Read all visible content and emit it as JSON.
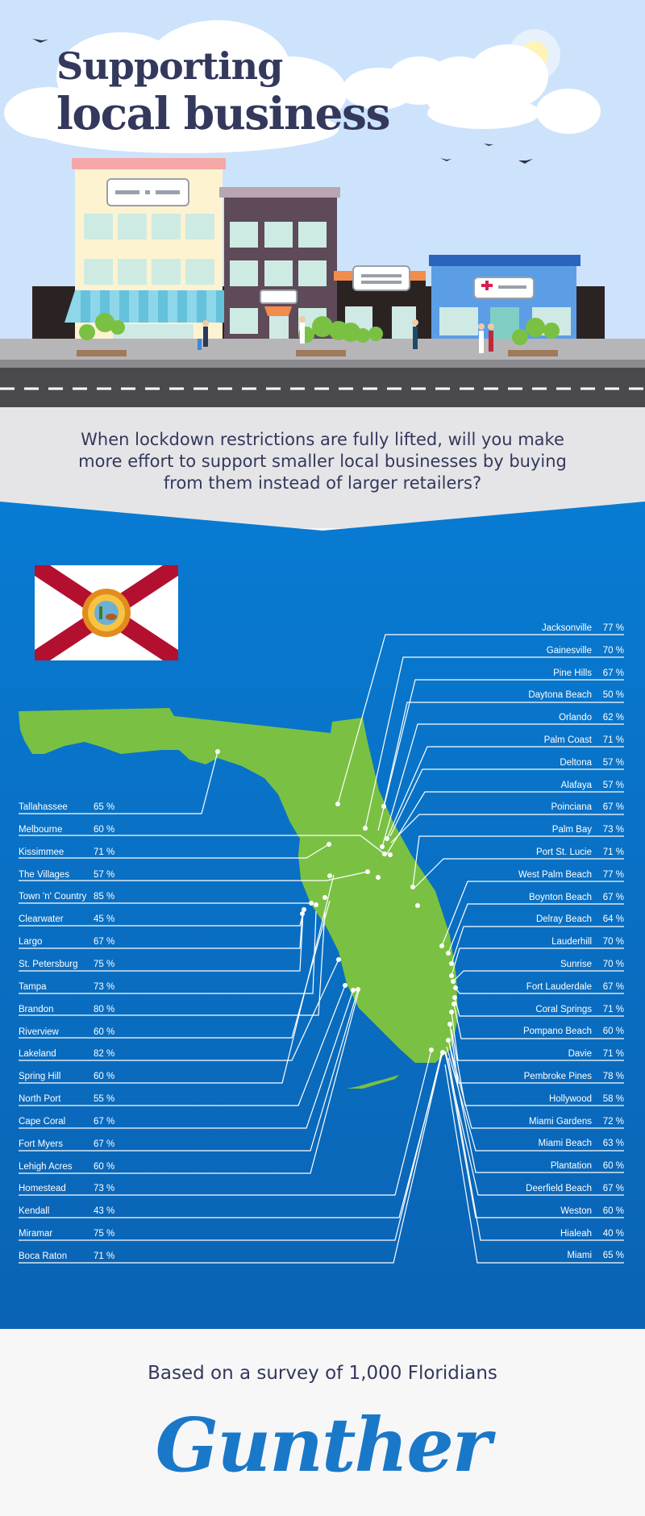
{
  "header": {
    "title_line1": "Supporting",
    "title_line2": "local business"
  },
  "question": "When lockdown restrictions are fully lifted, will you make more effort to support smaller local businesses by buying from them instead of larger retailers?",
  "colors": {
    "sky": "#cce3fb",
    "title": "#33385c",
    "ocean": "#0a70c8",
    "land": "#7ac143",
    "brand": "#1a78c8"
  },
  "chart_data": {
    "type": "table",
    "left_column": [
      {
        "city": "Tallahassee",
        "value": "65 %"
      },
      {
        "city": "Melbourne",
        "value": "60 %"
      },
      {
        "city": "Kissimmee",
        "value": "71 %"
      },
      {
        "city": "The Villages",
        "value": "57 %"
      },
      {
        "city": "Town 'n' Country",
        "value": "85 %"
      },
      {
        "city": "Clearwater",
        "value": "45 %"
      },
      {
        "city": "Largo",
        "value": "67 %"
      },
      {
        "city": "St. Petersburg",
        "value": "75 %"
      },
      {
        "city": "Tampa",
        "value": "73 %"
      },
      {
        "city": "Brandon",
        "value": "80 %"
      },
      {
        "city": "Riverview",
        "value": "60 %"
      },
      {
        "city": "Lakeland",
        "value": "82 %"
      },
      {
        "city": "Spring Hill",
        "value": "60 %"
      },
      {
        "city": "North Port",
        "value": "55 %"
      },
      {
        "city": "Cape Coral",
        "value": "67 %"
      },
      {
        "city": "Fort Myers",
        "value": "67 %"
      },
      {
        "city": "Lehigh Acres",
        "value": "60 %"
      },
      {
        "city": "Homestead",
        "value": "73 %"
      },
      {
        "city": "Kendall",
        "value": "43 %"
      },
      {
        "city": "Miramar",
        "value": "75 %"
      },
      {
        "city": "Boca Raton",
        "value": "71 %"
      }
    ],
    "right_column": [
      {
        "city": "Jacksonville",
        "value": "77 %"
      },
      {
        "city": "Gainesville",
        "value": "70 %"
      },
      {
        "city": "Pine Hills",
        "value": "67 %"
      },
      {
        "city": "Daytona Beach",
        "value": "50 %"
      },
      {
        "city": "Orlando",
        "value": "62 %"
      },
      {
        "city": "Palm Coast",
        "value": "71 %"
      },
      {
        "city": "Deltona",
        "value": "57 %"
      },
      {
        "city": "Alafaya",
        "value": "57 %"
      },
      {
        "city": "Poinciana",
        "value": "67 %"
      },
      {
        "city": "Palm Bay",
        "value": "73 %"
      },
      {
        "city": "Port St. Lucie",
        "value": "71 %"
      },
      {
        "city": "West Palm Beach",
        "value": "77 %"
      },
      {
        "city": "Boynton Beach",
        "value": "67 %"
      },
      {
        "city": "Delray Beach",
        "value": "64 %"
      },
      {
        "city": "Lauderhill",
        "value": "70 %"
      },
      {
        "city": "Sunrise",
        "value": "70 %"
      },
      {
        "city": "Fort Lauderdale",
        "value": "67 %"
      },
      {
        "city": "Coral Springs",
        "value": "71 %"
      },
      {
        "city": "Pompano Beach",
        "value": "60 %"
      },
      {
        "city": "Davie",
        "value": "71 %"
      },
      {
        "city": "Pembroke Pines",
        "value": "78 %"
      },
      {
        "city": "Hollywood",
        "value": "58 %"
      },
      {
        "city": "Miami Gardens",
        "value": "72 %"
      },
      {
        "city": "Miami Beach",
        "value": "63 %"
      },
      {
        "city": "Plantation",
        "value": "60 %"
      },
      {
        "city": "Deerfield Beach",
        "value": "67 %"
      },
      {
        "city": "Weston",
        "value": "60 %"
      },
      {
        "city": "Hialeah",
        "value": "40 %"
      },
      {
        "city": "Miami",
        "value": "65 %"
      }
    ]
  },
  "footer": {
    "survey_note": "Based on a survey of 1,000 Floridians",
    "brand": "Gunther"
  }
}
